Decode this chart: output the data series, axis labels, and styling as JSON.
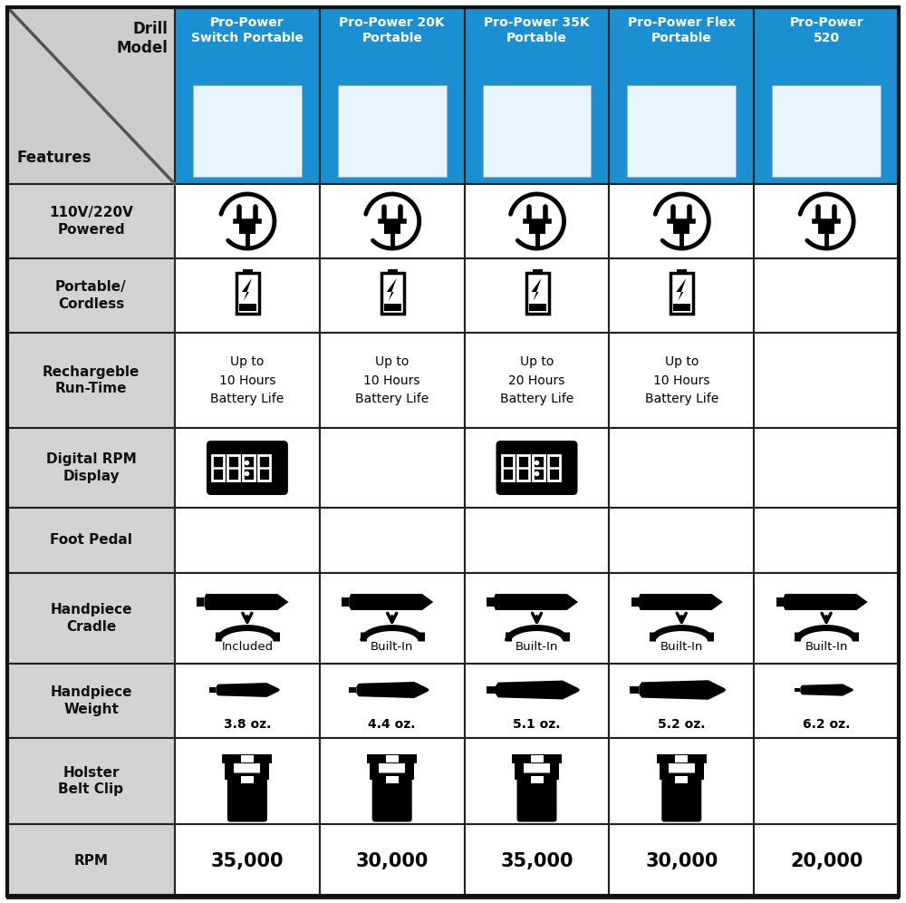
{
  "header_bg": "#1a8fd1",
  "header_text_color": "#ffffff",
  "row_bg_gray": "#d6d6d6",
  "row_bg_white": "#ffffff",
  "border_color": "#222222",
  "text_color": "#111111",
  "col_headers": [
    "Pro-Power\nSwitch Portable",
    "Pro-Power 20K\nPortable",
    "Pro-Power 35K\nPortable",
    "Pro-Power Flex\nPortable",
    "Pro-Power\n520"
  ],
  "row_labels": [
    "110V/220V\nPowered",
    "Portable/\nCordless",
    "Rechargeble\nRun-Time",
    "Digital RPM\nDisplay",
    "Foot Pedal",
    "Handpiece\nCradle",
    "Handpiece\nWeight",
    "Holster\nBelt Clip",
    "RPM"
  ],
  "runtime_text": [
    "Up to\n10 Hours\nBattery Life",
    "Up to\n10 Hours\nBattery Life",
    "Up to\n20 Hours\nBattery Life",
    "Up to\n10 Hours\nBattery Life",
    ""
  ],
  "cradle_text": [
    "Included",
    "Built-In",
    "Built-In",
    "Built-In",
    "Built-In"
  ],
  "weight_text": [
    "3.8 oz.",
    "4.4 oz.",
    "5.1 oz.",
    "5.2 oz.",
    "6.2 oz."
  ],
  "rpm_text": [
    "35,000",
    "30,000",
    "35,000",
    "30,000",
    "20,000"
  ],
  "power_icon": [
    true,
    true,
    true,
    true,
    true
  ],
  "portable_icon": [
    true,
    true,
    true,
    true,
    false
  ],
  "digital_rpm_icon": [
    true,
    false,
    true,
    false,
    false
  ],
  "holster_icon": [
    true,
    true,
    true,
    true,
    false
  ],
  "cradle_icon": [
    true,
    true,
    true,
    true,
    true
  ],
  "weight_scale": [
    0.75,
    0.88,
    1.05,
    1.08,
    0.6
  ]
}
